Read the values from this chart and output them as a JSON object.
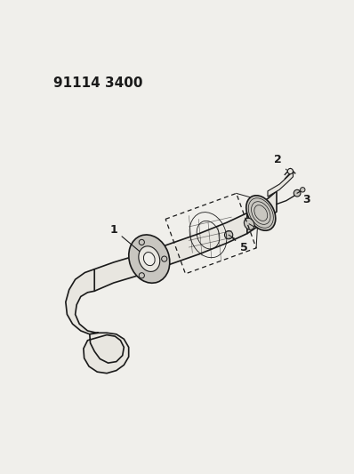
{
  "title": "91114 3400",
  "bg_color": "#f0efeb",
  "line_color": "#1a1a1a",
  "fill_color": "#e8e6e0",
  "fill_dark": "#c8c6c0",
  "white": "#f8f8f6"
}
